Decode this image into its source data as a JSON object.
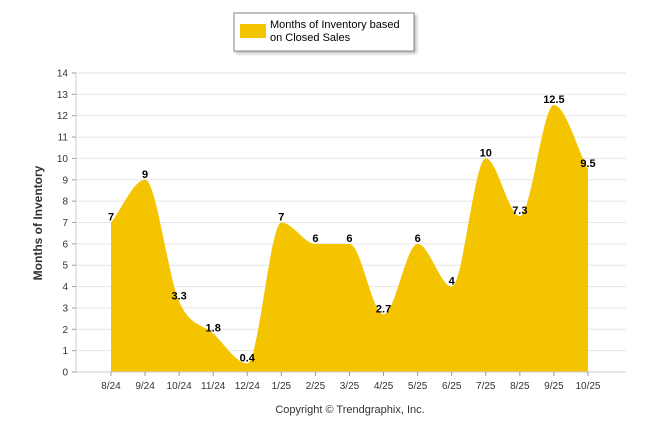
{
  "chart_data": {
    "type": "area",
    "categories": [
      "8/24",
      "9/24",
      "10/24",
      "11/24",
      "12/24",
      "1/25",
      "2/25",
      "3/25",
      "4/25",
      "5/25",
      "6/25",
      "7/25",
      "8/25",
      "9/25",
      "10/25"
    ],
    "series": [
      {
        "name": "Months of Inventory based on Closed Sales",
        "values": [
          7,
          9,
          3.3,
          1.8,
          0.4,
          7,
          6,
          6,
          2.7,
          6,
          4,
          10,
          7.3,
          12.5,
          9.5
        ],
        "color": "#f5c400"
      }
    ],
    "data_labels": [
      "7",
      "9",
      "3.3",
      "1.8",
      "0.4",
      "7",
      "6",
      "6",
      "2.7",
      "6",
      "4",
      "10",
      "7.3",
      "12.5",
      "9.5"
    ],
    "ylabel": "Months of Inventory",
    "xlabel": "",
    "ylim": [
      0,
      14
    ],
    "yticks": [
      0,
      1,
      2,
      3,
      4,
      5,
      6,
      7,
      8,
      9,
      10,
      11,
      12,
      13,
      14
    ],
    "legend": {
      "line1": "Months of Inventory based",
      "line2": "on Closed Sales",
      "placement": "top-center"
    },
    "grid": true,
    "copyright": "Copyright © Trendgraphix, Inc."
  }
}
